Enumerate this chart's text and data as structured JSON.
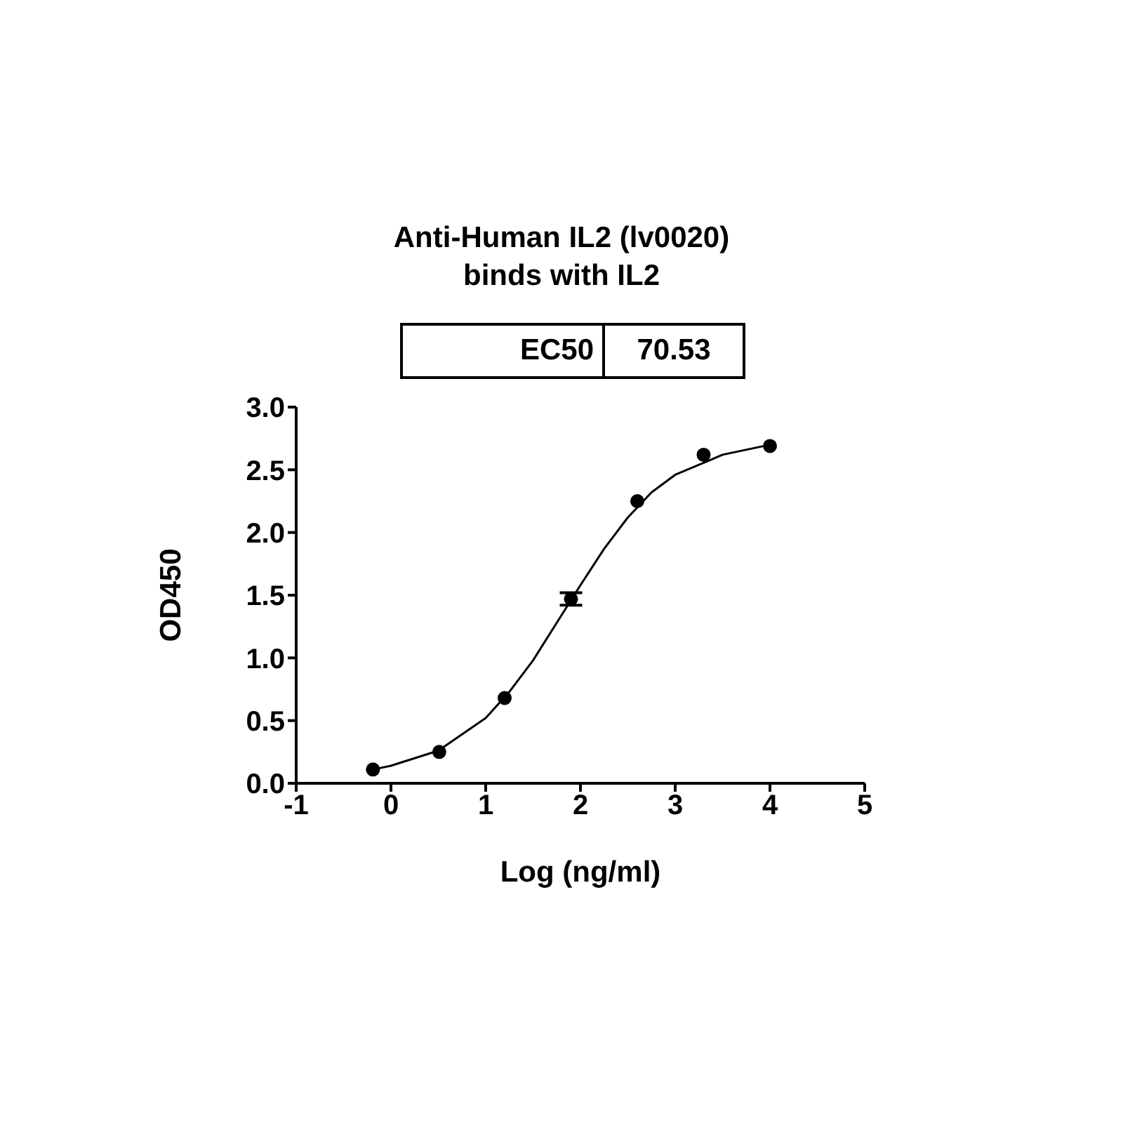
{
  "chart_data": {
    "type": "scatter",
    "title": "Anti-Human IL2 (lv0020)\nbinds with IL2",
    "annotations": [
      "EC50",
      "70.53"
    ],
    "xlabel": "Log (ng/ml)",
    "ylabel": "OD450",
    "x": [
      -0.19,
      0.51,
      1.2,
      1.9,
      2.6,
      3.3,
      4
    ],
    "series": [
      {
        "marker": "circle",
        "color": "#000000",
        "values": [
          0.11,
          0.25,
          0.68,
          1.47,
          2.25,
          2.62,
          2.69
        ],
        "errors": [
          null,
          null,
          null,
          0.05,
          null,
          null,
          null
        ]
      },
      {
        "type": "line",
        "marker": "none",
        "color": "#000000",
        "x": [
          -0.19,
          0,
          0.5,
          1,
          1.25,
          1.5,
          1.75,
          2,
          2.25,
          2.5,
          2.75,
          3,
          3.5,
          4
        ],
        "values": [
          0.11,
          0.14,
          0.26,
          0.52,
          0.73,
          0.98,
          1.28,
          1.58,
          1.87,
          2.12,
          2.32,
          2.46,
          2.62,
          2.7
        ]
      }
    ],
    "xlim": [
      -1,
      5
    ],
    "xticks": [
      -1,
      0,
      1,
      2,
      3,
      4,
      5
    ],
    "ylim": [
      0,
      3
    ],
    "yticks": [
      {
        "value": 0,
        "label": "0.0"
      },
      {
        "value": 0.5,
        "label": "0.5"
      },
      {
        "value": 1,
        "label": "1.0"
      },
      {
        "value": 1.5,
        "label": "1.5"
      },
      {
        "value": 2,
        "label": "2.0"
      },
      {
        "value": 2.5,
        "label": "2.5"
      },
      {
        "value": 3,
        "label": "3.0"
      }
    ],
    "grid": false,
    "legend": false
  }
}
